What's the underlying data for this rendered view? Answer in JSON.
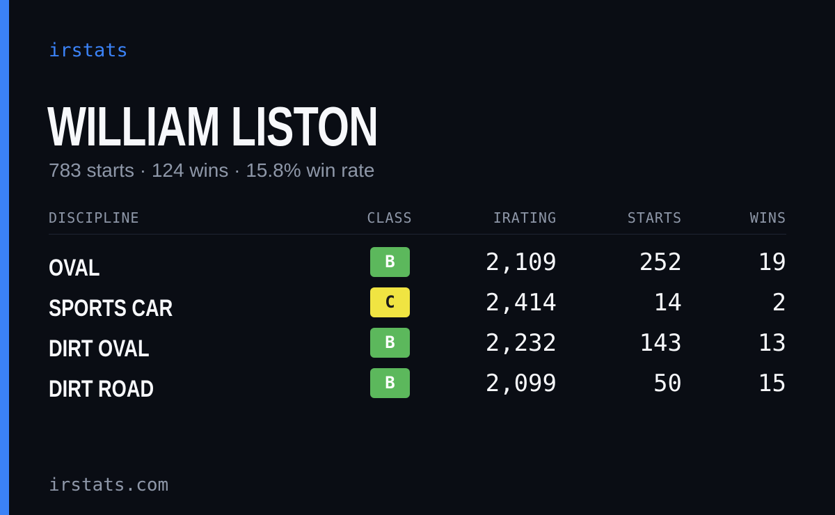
{
  "brand": "irstats",
  "player": {
    "name": "WILLIAM LISTON",
    "summary": "783 starts · 124 wins · 15.8% win rate"
  },
  "table": {
    "headers": {
      "discipline": "DISCIPLINE",
      "class": "CLASS",
      "irating": "IRATING",
      "starts": "STARTS",
      "wins": "WINS"
    },
    "rows": [
      {
        "discipline": "OVAL",
        "class": "B",
        "class_color": "#5cb85c",
        "class_text_color": "#ffffff",
        "irating": "2,109",
        "starts": "252",
        "wins": "19"
      },
      {
        "discipline": "SPORTS CAR",
        "class": "C",
        "class_color": "#f0e442",
        "class_text_color": "#1a1a1a",
        "irating": "2,414",
        "starts": "14",
        "wins": "2"
      },
      {
        "discipline": "DIRT OVAL",
        "class": "B",
        "class_color": "#5cb85c",
        "class_text_color": "#ffffff",
        "irating": "2,232",
        "starts": "143",
        "wins": "13"
      },
      {
        "discipline": "DIRT ROAD",
        "class": "B",
        "class_color": "#5cb85c",
        "class_text_color": "#ffffff",
        "irating": "2,099",
        "starts": "50",
        "wins": "15"
      }
    ]
  },
  "footer": {
    "url": "irstats.com"
  },
  "colors": {
    "accent": "#3b82f6",
    "background": "#0a0d14"
  }
}
